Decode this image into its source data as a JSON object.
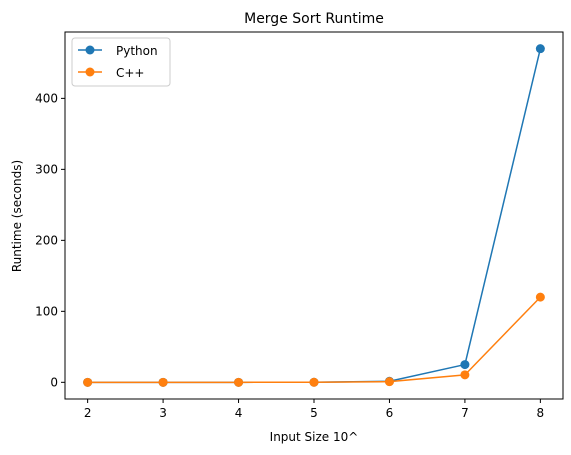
{
  "chart_data": {
    "type": "line",
    "title": "Merge Sort Runtime",
    "xlabel": "Input Size 10^",
    "ylabel": "Runtime (seconds)",
    "x": [
      2,
      3,
      4,
      5,
      6,
      7,
      8
    ],
    "xlim": [
      1.7,
      8.3
    ],
    "ylim": [
      -23.5,
      493.5
    ],
    "yticks": [
      0,
      100,
      200,
      300,
      400
    ],
    "legend_position": "top-left",
    "grid": false,
    "series": [
      {
        "name": "Python",
        "color": "#1f77b4",
        "marker": "circle",
        "values": [
          0.0,
          0.0,
          0.0,
          0.1,
          1.5,
          25,
          470
        ]
      },
      {
        "name": "C++",
        "color": "#ff7f0e",
        "marker": "circle",
        "values": [
          0.0,
          0.0,
          0.0,
          0.05,
          0.9,
          10.5,
          120
        ]
      }
    ]
  }
}
